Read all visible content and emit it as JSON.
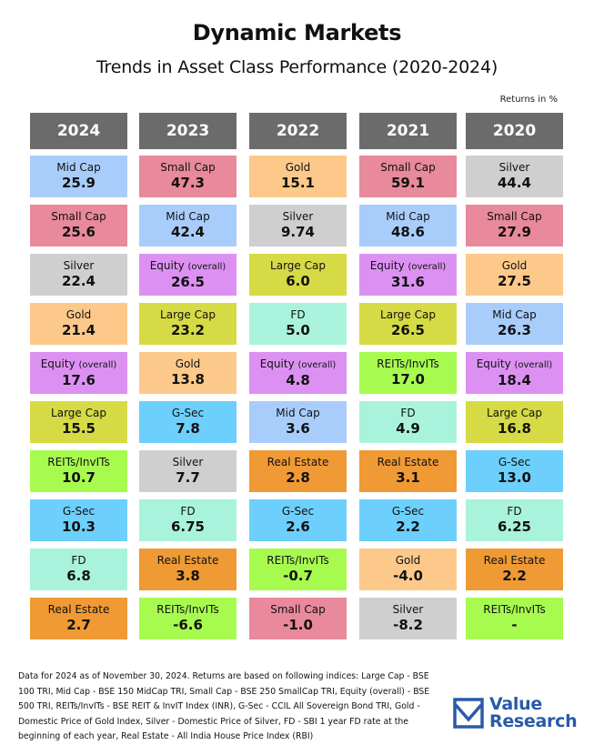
{
  "header": {
    "title": "Dynamic Markets",
    "subtitle": "Trends in Asset Class Performance (2020-2024)",
    "returns_note": "Returns in %"
  },
  "colors": {
    "header_bg": "#6b6b6b",
    "Mid Cap": "#a9cdfb",
    "Small Cap": "#e8899c",
    "Silver": "#cfcfcf",
    "Gold": "#fdc98a",
    "Equity (overall)": "#dc91f2",
    "Large Cap": "#d6da45",
    "REITs/InvITs": "#a7fb4f",
    "G-Sec": "#6ccffc",
    "FD": "#a9f3dc",
    "Real Estate": "#ef9a34"
  },
  "columns": [
    {
      "year": "2024",
      "cells": [
        {
          "name": "Mid Cap",
          "value": "25.9"
        },
        {
          "name": "Small Cap",
          "value": "25.6"
        },
        {
          "name": "Silver",
          "value": "22.4"
        },
        {
          "name": "Gold",
          "value": "21.4"
        },
        {
          "name": "Equity (overall)",
          "value": "17.6"
        },
        {
          "name": "Large Cap",
          "value": "15.5"
        },
        {
          "name": "REITs/InvITs",
          "value": "10.7"
        },
        {
          "name": "G-Sec",
          "value": "10.3"
        },
        {
          "name": "FD",
          "value": "6.8"
        },
        {
          "name": "Real Estate",
          "value": "2.7"
        }
      ]
    },
    {
      "year": "2023",
      "cells": [
        {
          "name": "Small Cap",
          "value": "47.3"
        },
        {
          "name": "Mid Cap",
          "value": "42.4"
        },
        {
          "name": "Equity (overall)",
          "value": "26.5"
        },
        {
          "name": "Large Cap",
          "value": "23.2"
        },
        {
          "name": "Gold",
          "value": "13.8"
        },
        {
          "name": "G-Sec",
          "value": "7.8"
        },
        {
          "name": "Silver",
          "value": "7.7"
        },
        {
          "name": "FD",
          "value": "6.75"
        },
        {
          "name": "Real Estate",
          "value": "3.8"
        },
        {
          "name": "REITs/InvITs",
          "value": "-6.6"
        }
      ]
    },
    {
      "year": "2022",
      "cells": [
        {
          "name": "Gold",
          "value": "15.1"
        },
        {
          "name": "Silver",
          "value": "9.74"
        },
        {
          "name": "Large Cap",
          "value": "6.0"
        },
        {
          "name": "FD",
          "value": "5.0"
        },
        {
          "name": "Equity (overall)",
          "value": "4.8"
        },
        {
          "name": "Mid Cap",
          "value": "3.6"
        },
        {
          "name": "Real Estate",
          "value": "2.8"
        },
        {
          "name": "G-Sec",
          "value": "2.6"
        },
        {
          "name": "REITs/InvITs",
          "value": "-0.7"
        },
        {
          "name": "Small Cap",
          "value": "-1.0"
        }
      ]
    },
    {
      "year": "2021",
      "cells": [
        {
          "name": "Small Cap",
          "value": "59.1"
        },
        {
          "name": "Mid Cap",
          "value": "48.6"
        },
        {
          "name": "Equity (overall)",
          "value": "31.6"
        },
        {
          "name": "Large Cap",
          "value": "26.5"
        },
        {
          "name": "REITs/InvITs",
          "value": "17.0"
        },
        {
          "name": "FD",
          "value": "4.9"
        },
        {
          "name": "Real Estate",
          "value": "3.1"
        },
        {
          "name": "G-Sec",
          "value": "2.2"
        },
        {
          "name": "Gold",
          "value": "-4.0"
        },
        {
          "name": "Silver",
          "value": "-8.2"
        }
      ]
    },
    {
      "year": "2020",
      "cells": [
        {
          "name": "Silver",
          "value": "44.4"
        },
        {
          "name": "Small Cap",
          "value": "27.9"
        },
        {
          "name": "Gold",
          "value": "27.5"
        },
        {
          "name": "Mid Cap",
          "value": "26.3"
        },
        {
          "name": "Equity (overall)",
          "value": "18.4"
        },
        {
          "name": "Large Cap",
          "value": "16.8"
        },
        {
          "name": "G-Sec",
          "value": "13.0"
        },
        {
          "name": "FD",
          "value": "6.25"
        },
        {
          "name": "Real Estate",
          "value": "2.2"
        },
        {
          "name": "REITs/InvITs",
          "value": "-"
        }
      ]
    }
  ],
  "footnote": "Data for 2024 as of November 30, 2024. Returns are based on following indices: Large Cap - BSE 100 TRI, Mid Cap - BSE 150 MidCap TRI, Small Cap - BSE 250 SmallCap TRI, Equity (overall) - BSE 500 TRI, REITs/InvITs - BSE REIT & InvIT Index (INR), G-Sec - CCIL All Sovereign Bond TRI, Gold - Domestic Price of Gold Index, Silver - Domestic Price of Silver, FD - SBI 1 year FD rate at the beginning of each year, Real Estate - All India House Price Index (RBI)",
  "logo": {
    "line1": "Value",
    "line2": "Research",
    "color": "#2a5aa8"
  },
  "chart_data": {
    "type": "table",
    "title": "Dynamic Markets",
    "subtitle": "Trends in Asset Class Performance (2020-2024)",
    "unit": "Returns in %",
    "categories": [
      "2024",
      "2023",
      "2022",
      "2021",
      "2020"
    ],
    "layout": "ranked columns, highest return at top",
    "series": [
      {
        "name": "Large Cap",
        "values": [
          15.5,
          23.2,
          6.0,
          26.5,
          16.8
        ]
      },
      {
        "name": "Mid Cap",
        "values": [
          25.9,
          42.4,
          3.6,
          48.6,
          26.3
        ]
      },
      {
        "name": "Small Cap",
        "values": [
          25.6,
          47.3,
          -1.0,
          59.1,
          27.9
        ]
      },
      {
        "name": "Equity (overall)",
        "values": [
          17.6,
          26.5,
          4.8,
          31.6,
          18.4
        ]
      },
      {
        "name": "REITs/InvITs",
        "values": [
          10.7,
          -6.6,
          -0.7,
          17.0,
          null
        ]
      },
      {
        "name": "G-Sec",
        "values": [
          10.3,
          7.8,
          2.6,
          2.2,
          13.0
        ]
      },
      {
        "name": "Gold",
        "values": [
          21.4,
          13.8,
          15.1,
          -4.0,
          27.5
        ]
      },
      {
        "name": "Silver",
        "values": [
          22.4,
          7.7,
          9.74,
          -8.2,
          44.4
        ]
      },
      {
        "name": "FD",
        "values": [
          6.8,
          6.75,
          5.0,
          4.9,
          6.25
        ]
      },
      {
        "name": "Real Estate",
        "values": [
          2.7,
          3.8,
          2.8,
          3.1,
          2.2
        ]
      }
    ]
  }
}
